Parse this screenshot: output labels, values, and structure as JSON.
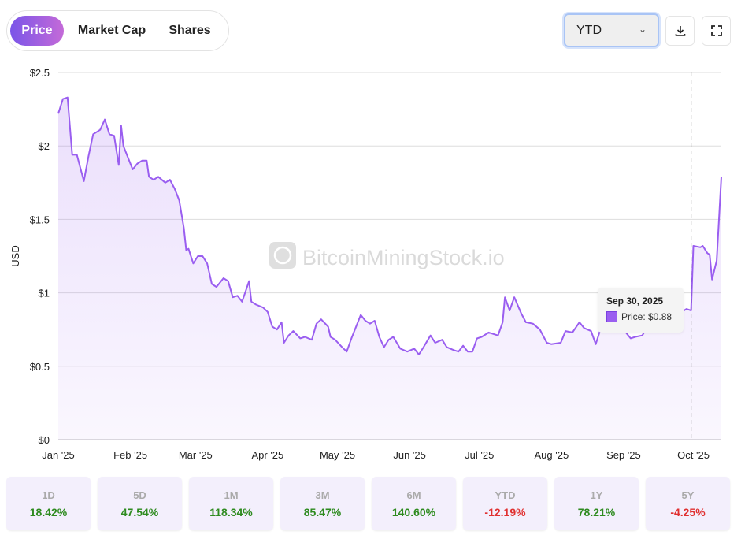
{
  "tabs": [
    {
      "label": "Price",
      "active": true
    },
    {
      "label": "Market Cap"
    },
    {
      "label": "Shares"
    }
  ],
  "range_select": {
    "value": "YTD"
  },
  "icons": {
    "download": "download-icon",
    "fullscreen": "fullscreen-icon"
  },
  "watermark": "BitcoinMiningStock.io",
  "colors": {
    "line": "#9a5ef0",
    "positive": "#2e8b1f",
    "negative": "#e03030"
  },
  "tooltip": {
    "date": "Sep 30, 2025",
    "label": "Price: $0.88"
  },
  "chart_data": {
    "type": "area",
    "ylabel": "USD",
    "ylim": [
      0,
      2.5
    ],
    "grid": true,
    "yticks": [
      "$0",
      "$0.5",
      "$1",
      "$1.5",
      "$2",
      "$2.5"
    ],
    "ytick_values": [
      0,
      0.5,
      1,
      1.5,
      2,
      2.5
    ],
    "xticks": [
      "Jan '25",
      "Feb '25",
      "Mar '25",
      "Apr '25",
      "May '25",
      "Jun '25",
      "Jul '25",
      "Aug '25",
      "Sep '25",
      "Oct '25"
    ],
    "xtick_dates": [
      "2025-01-01",
      "2025-02-01",
      "2025-03-01",
      "2025-04-01",
      "2025-05-01",
      "2025-06-01",
      "2025-07-01",
      "2025-08-01",
      "2025-09-01",
      "2025-10-01"
    ],
    "cursor_date": "2025-09-30",
    "dates": [
      "2025-01-01",
      "2025-01-03",
      "2025-01-05",
      "2025-01-07",
      "2025-01-09",
      "2025-01-12",
      "2025-01-14",
      "2025-01-16",
      "2025-01-19",
      "2025-01-21",
      "2025-01-23",
      "2025-01-25",
      "2025-01-27",
      "2025-01-28",
      "2025-01-29",
      "2025-02-02",
      "2025-02-04",
      "2025-02-06",
      "2025-02-08",
      "2025-02-09",
      "2025-02-11",
      "2025-02-13",
      "2025-02-16",
      "2025-02-18",
      "2025-02-20",
      "2025-02-22",
      "2025-02-24",
      "2025-02-25",
      "2025-02-26",
      "2025-02-28",
      "2025-03-02",
      "2025-03-04",
      "2025-03-06",
      "2025-03-08",
      "2025-03-10",
      "2025-03-13",
      "2025-03-15",
      "2025-03-17",
      "2025-03-19",
      "2025-03-21",
      "2025-03-24",
      "2025-03-25",
      "2025-03-27",
      "2025-03-30",
      "2025-04-01",
      "2025-04-03",
      "2025-04-05",
      "2025-04-07",
      "2025-04-08",
      "2025-04-10",
      "2025-04-12",
      "2025-04-15",
      "2025-04-17",
      "2025-04-20",
      "2025-04-22",
      "2025-04-24",
      "2025-04-27",
      "2025-04-28",
      "2025-04-30",
      "2025-05-03",
      "2025-05-05",
      "2025-05-07",
      "2025-05-09",
      "2025-05-11",
      "2025-05-13",
      "2025-05-15",
      "2025-05-17",
      "2025-05-19",
      "2025-05-21",
      "2025-05-23",
      "2025-05-25",
      "2025-05-28",
      "2025-05-31",
      "2025-06-03",
      "2025-06-05",
      "2025-06-07",
      "2025-06-10",
      "2025-06-12",
      "2025-06-15",
      "2025-06-17",
      "2025-06-20",
      "2025-06-22",
      "2025-06-24",
      "2025-06-26",
      "2025-06-28",
      "2025-06-30",
      "2025-07-02",
      "2025-07-05",
      "2025-07-09",
      "2025-07-11",
      "2025-07-12",
      "2025-07-14",
      "2025-07-16",
      "2025-07-19",
      "2025-07-21",
      "2025-07-24",
      "2025-07-27",
      "2025-07-30",
      "2025-08-01",
      "2025-08-05",
      "2025-08-07",
      "2025-08-10",
      "2025-08-13",
      "2025-08-15",
      "2025-08-18",
      "2025-08-20",
      "2025-08-22",
      "2025-08-25",
      "2025-08-28",
      "2025-08-30",
      "2025-09-01",
      "2025-09-04",
      "2025-09-06",
      "2025-09-09",
      "2025-09-12",
      "2025-09-14",
      "2025-09-18",
      "2025-09-21",
      "2025-09-25",
      "2025-09-28",
      "2025-09-30",
      "2025-10-01",
      "2025-10-04",
      "2025-10-05",
      "2025-10-07",
      "2025-10-08",
      "2025-10-09",
      "2025-10-11",
      "2025-10-13"
    ],
    "values": [
      2.22,
      2.32,
      2.33,
      1.94,
      1.94,
      1.76,
      1.93,
      2.08,
      2.11,
      2.18,
      2.08,
      2.07,
      1.87,
      2.14,
      2.0,
      1.84,
      1.88,
      1.9,
      1.9,
      1.79,
      1.77,
      1.79,
      1.75,
      1.77,
      1.71,
      1.63,
      1.44,
      1.29,
      1.3,
      1.2,
      1.25,
      1.25,
      1.2,
      1.06,
      1.04,
      1.1,
      1.08,
      0.97,
      0.98,
      0.94,
      1.08,
      0.94,
      0.92,
      0.9,
      0.87,
      0.77,
      0.75,
      0.8,
      0.66,
      0.71,
      0.74,
      0.69,
      0.7,
      0.68,
      0.79,
      0.82,
      0.77,
      0.7,
      0.68,
      0.63,
      0.6,
      0.69,
      0.77,
      0.85,
      0.81,
      0.79,
      0.81,
      0.7,
      0.63,
      0.68,
      0.7,
      0.62,
      0.6,
      0.62,
      0.58,
      0.63,
      0.71,
      0.66,
      0.68,
      0.63,
      0.61,
      0.6,
      0.64,
      0.6,
      0.6,
      0.69,
      0.7,
      0.73,
      0.71,
      0.8,
      0.97,
      0.88,
      0.97,
      0.86,
      0.8,
      0.79,
      0.75,
      0.66,
      0.65,
      0.66,
      0.74,
      0.73,
      0.8,
      0.76,
      0.74,
      0.65,
      0.75,
      0.85,
      0.82,
      0.78,
      0.75,
      0.69,
      0.7,
      0.71,
      0.79,
      0.85,
      0.87,
      0.88,
      0.86,
      0.89,
      0.88,
      1.32,
      1.31,
      1.32,
      1.27,
      1.26,
      1.09,
      1.22,
      1.79
    ]
  },
  "stats": [
    {
      "period": "1D",
      "change": "18.42%",
      "positive": true
    },
    {
      "period": "5D",
      "change": "47.54%",
      "positive": true
    },
    {
      "period": "1M",
      "change": "118.34%",
      "positive": true
    },
    {
      "period": "3M",
      "change": "85.47%",
      "positive": true
    },
    {
      "period": "6M",
      "change": "140.60%",
      "positive": true
    },
    {
      "period": "YTD",
      "change": "-12.19%",
      "positive": false
    },
    {
      "period": "1Y",
      "change": "78.21%",
      "positive": true
    },
    {
      "period": "5Y",
      "change": "-4.25%",
      "positive": false
    }
  ]
}
